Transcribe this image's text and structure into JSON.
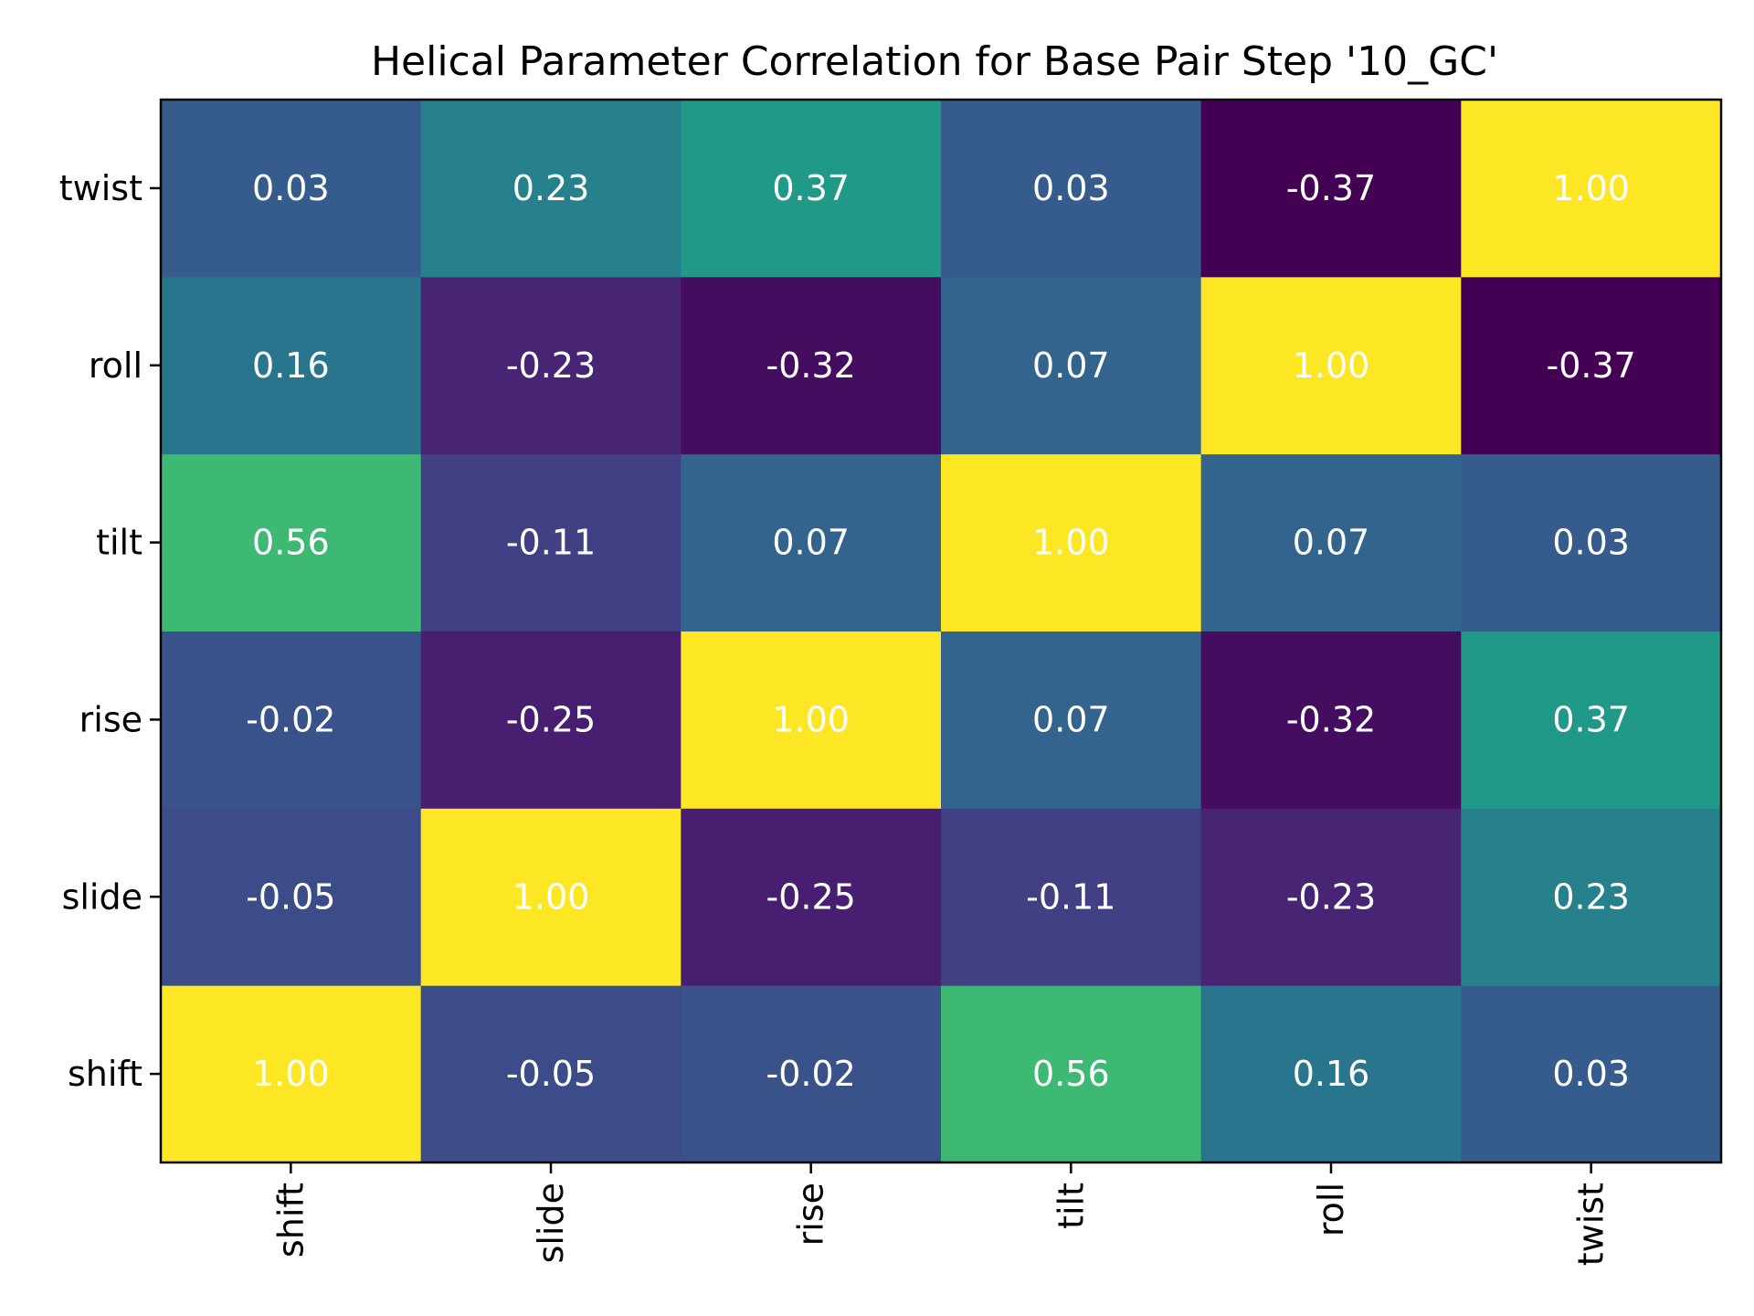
{
  "chart_data": {
    "type": "heatmap",
    "title": "Helical Parameter Correlation for Base Pair Step '10_GC'",
    "x_categories": [
      "shift",
      "slide",
      "rise",
      "tilt",
      "roll",
      "twist"
    ],
    "y_categories": [
      "shift",
      "slide",
      "rise",
      "tilt",
      "roll",
      "twist"
    ],
    "y_order": "bottom-to-top",
    "value_range": [
      -0.37,
      1.0
    ],
    "colormap": "viridis",
    "grid": false,
    "legend": "none",
    "matrix": [
      [
        1.0,
        -0.05,
        -0.02,
        0.56,
        0.16,
        0.03
      ],
      [
        -0.05,
        1.0,
        -0.25,
        -0.11,
        -0.23,
        0.23
      ],
      [
        -0.02,
        -0.25,
        1.0,
        0.07,
        -0.32,
        0.37
      ],
      [
        0.56,
        -0.11,
        0.07,
        1.0,
        0.07,
        0.03
      ],
      [
        0.16,
        -0.23,
        -0.32,
        0.07,
        1.0,
        -0.37
      ],
      [
        0.03,
        0.23,
        0.37,
        0.03,
        -0.37,
        1.0
      ]
    ]
  }
}
